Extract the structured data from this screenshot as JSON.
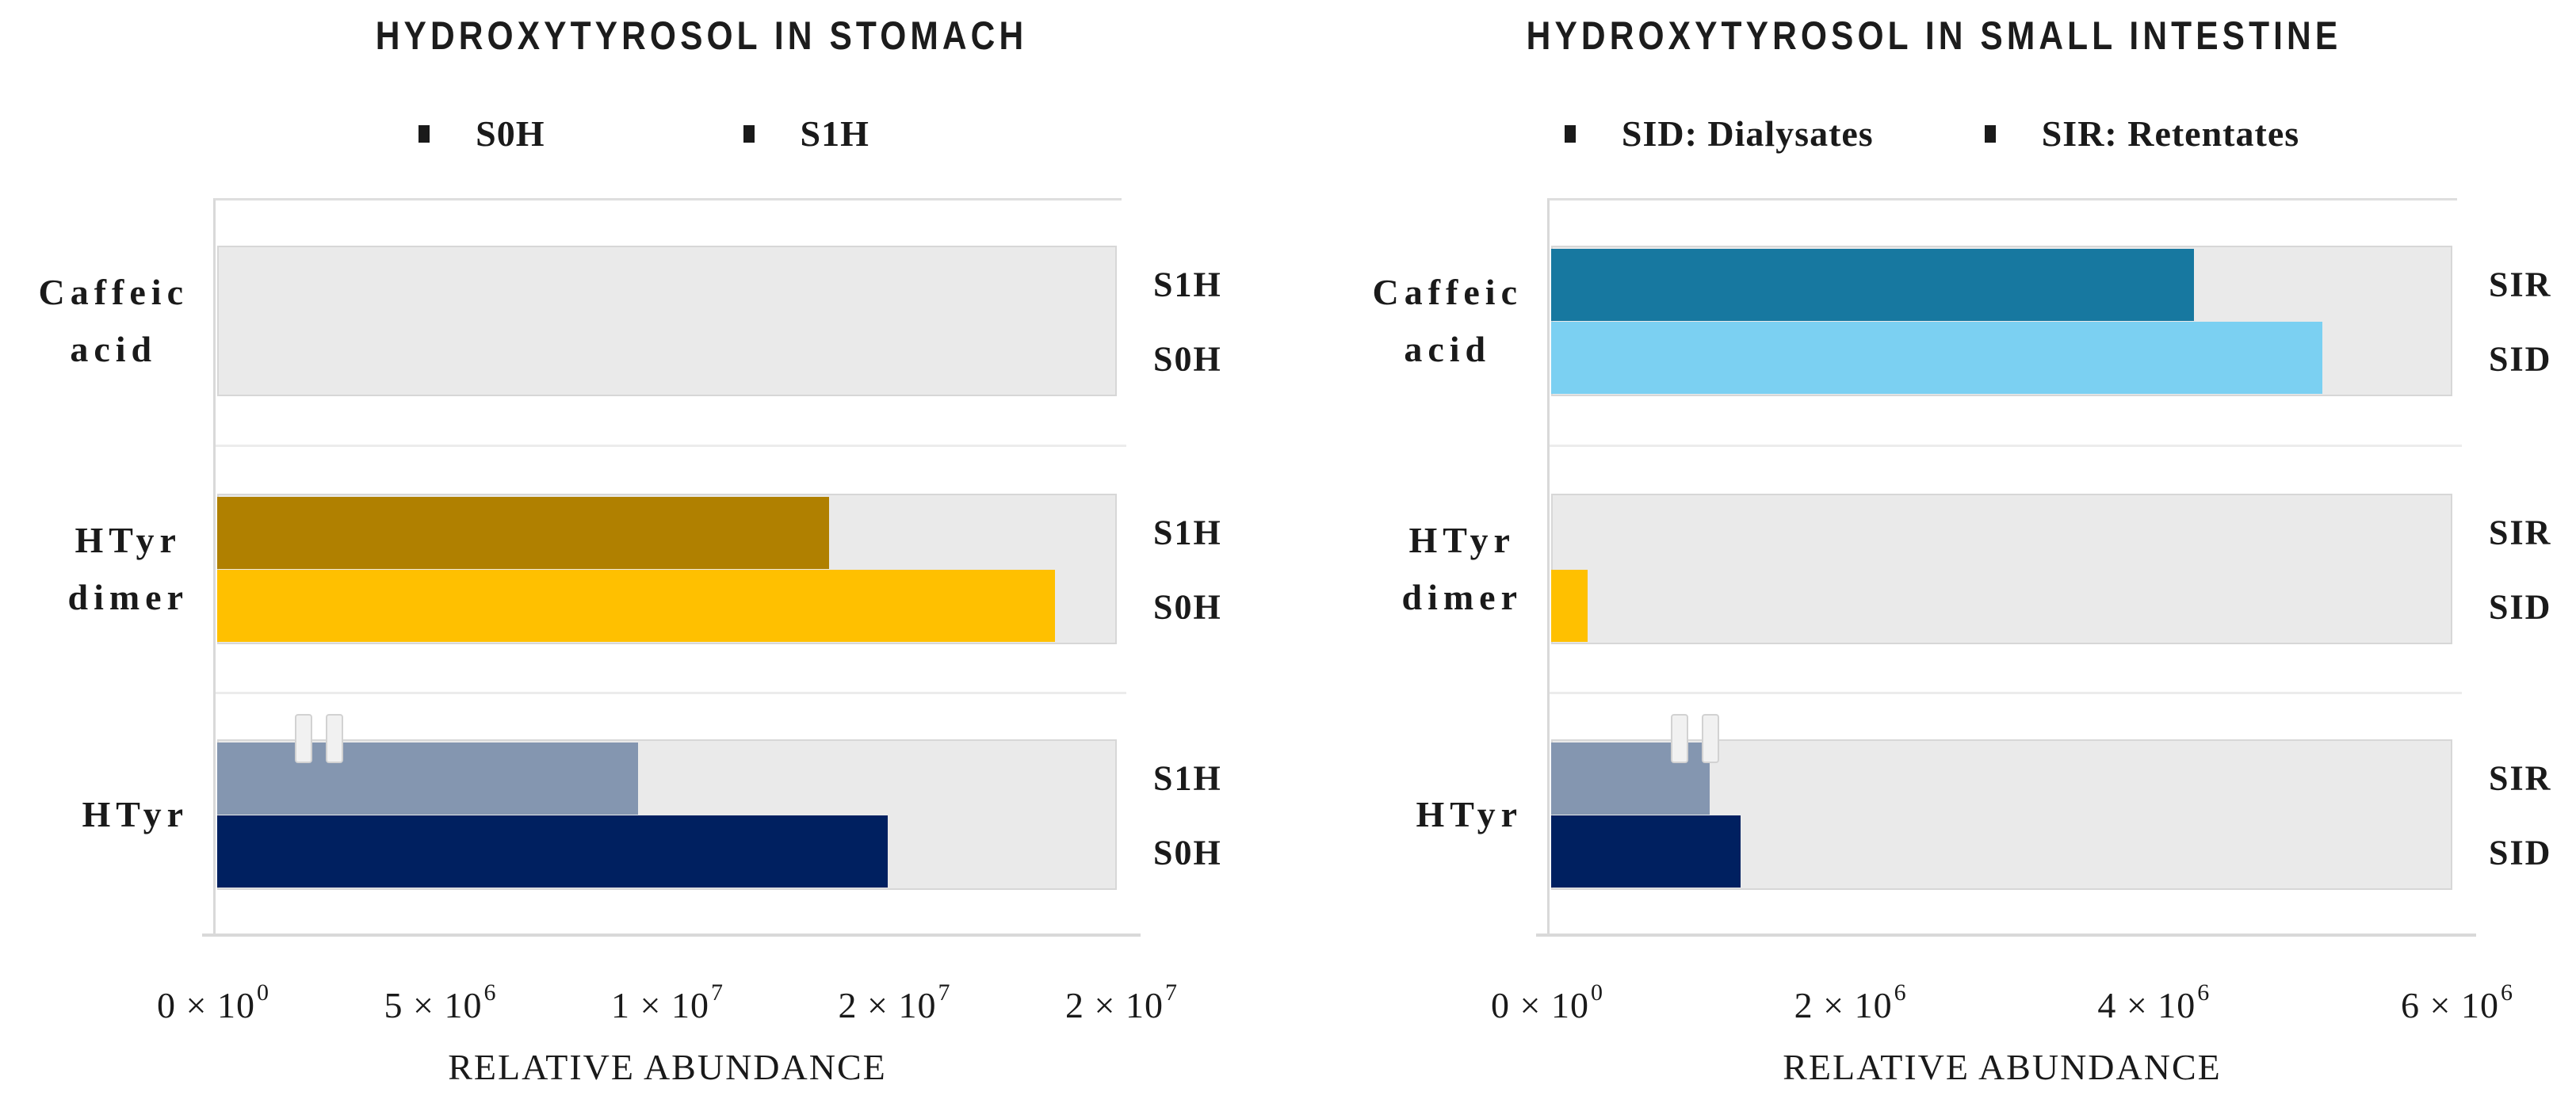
{
  "chart_data": [
    {
      "type": "bar",
      "orientation": "horizontal",
      "title": "HYDROXYTYROSOL IN STOMACH",
      "xlabel": "RELATIVE ABUNDANCE",
      "xlim": [
        0,
        20000000
      ],
      "axis_break_near_origin": true,
      "grid": "category-boundaries",
      "legend_position": "top",
      "legend": [
        {
          "label": "S0H"
        },
        {
          "label": "S1H"
        }
      ],
      "x_ticks": [
        {
          "mantissa": "0",
          "exponent": "0",
          "value": 0
        },
        {
          "mantissa": "5",
          "exponent": "6",
          "value": 5000000
        },
        {
          "mantissa": "1",
          "exponent": "7",
          "value": 10000000
        },
        {
          "mantissa": "2",
          "exponent": "7",
          "value": 15000000
        },
        {
          "mantissa": "2",
          "exponent": "7",
          "value": 20000000
        }
      ],
      "categories": [
        "Caffeic acid",
        "HTyr dimer",
        "HTyr"
      ],
      "rows": [
        {
          "category_lines": [
            "Caffeic",
            "acid"
          ],
          "bars": [
            {
              "label": "S1H",
              "value": 0,
              "color": null
            },
            {
              "label": "S0H",
              "value": 0,
              "color": null
            }
          ]
        },
        {
          "category_lines": [
            "HTyr",
            "dimer"
          ],
          "bars": [
            {
              "label": "S1H",
              "value": 13500000,
              "color": "#B08000"
            },
            {
              "label": "S0H",
              "value": 18500000,
              "color": "#FFC000"
            }
          ]
        },
        {
          "category_lines": [
            "HTyr"
          ],
          "bars": [
            {
              "label": "S1H",
              "value": 9300000,
              "color": "#8496B0"
            },
            {
              "label": "S0H",
              "value": 14800000,
              "color": "#002060"
            }
          ]
        }
      ]
    },
    {
      "type": "bar",
      "orientation": "horizontal",
      "title": "HYDROXYTYROSOL IN SMALL INTESTINE",
      "xlabel": "RELATIVE ABUNDANCE",
      "xlim": [
        0,
        6000000
      ],
      "axis_break_near_origin": true,
      "grid": "category-boundaries",
      "legend_position": "top",
      "legend": [
        {
          "label": "SID: Dialysates"
        },
        {
          "label": "SIR: Retentates"
        }
      ],
      "x_ticks": [
        {
          "mantissa": "0",
          "exponent": "0",
          "value": 0
        },
        {
          "mantissa": "2",
          "exponent": "6",
          "value": 2000000
        },
        {
          "mantissa": "4",
          "exponent": "6",
          "value": 4000000
        },
        {
          "mantissa": "6",
          "exponent": "6",
          "value": 6000000
        }
      ],
      "categories": [
        "Caffeic acid",
        "HTyr dimer",
        "HTyr"
      ],
      "rows": [
        {
          "category_lines": [
            "Caffeic",
            "acid"
          ],
          "bars": [
            {
              "label": "SIR",
              "value": 4250000,
              "color": "#1778A0"
            },
            {
              "label": "SID",
              "value": 5100000,
              "color": "#7BD0F2"
            }
          ]
        },
        {
          "category_lines": [
            "HTyr",
            "dimer"
          ],
          "bars": [
            {
              "label": "SIR",
              "value": 0,
              "color": null
            },
            {
              "label": "SID",
              "value": 240000,
              "color": "#FFC000"
            }
          ]
        },
        {
          "category_lines": [
            "HTyr"
          ],
          "bars": [
            {
              "label": "SIR",
              "value": 1050000,
              "color": "#8496B0"
            },
            {
              "label": "SID",
              "value": 1250000,
              "color": "#002060"
            }
          ]
        }
      ]
    }
  ],
  "colors": {
    "row_background": "#EAEAEA",
    "row_border": "#D7D7D7",
    "axis_line": "#D9D9D9",
    "gridline": "#ECECEC",
    "legend_marker": "#1A1A1A",
    "text": "#1A1A1A"
  },
  "multiply_sign": "×"
}
